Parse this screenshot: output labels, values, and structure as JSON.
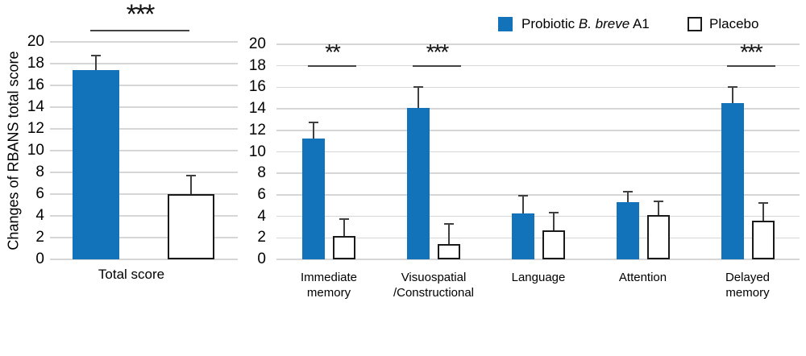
{
  "legend": {
    "items": [
      {
        "name": "probiotic",
        "prefix": "Probiotic ",
        "italic": "B. breve",
        "suffix": " A1",
        "swatch_color": "#1272ba"
      },
      {
        "name": "placebo",
        "label": "Placebo",
        "swatch_color": "#ffffff"
      }
    ]
  },
  "colors": {
    "probiotic": "#1272ba",
    "placebo_fill": "#ffffff",
    "bar_border": "#1a1a1a",
    "gridline": "#d6d6d6",
    "error_bar": "#404040",
    "sig_line": "#444444"
  },
  "chart_data": [
    {
      "type": "bar",
      "title": "",
      "ylabel": "Changes of RBANS total score",
      "xlabel": "",
      "ylim": [
        0,
        20
      ],
      "ytick_step": 2,
      "grid": true,
      "legend_position": "top-right",
      "categories": [
        "Total score"
      ],
      "series": [
        {
          "name": "Probiotic B. breve A1",
          "values": [
            17.4
          ],
          "errors_plus": [
            1.4
          ]
        },
        {
          "name": "Placebo",
          "values": [
            6.0
          ],
          "errors_plus": [
            1.8
          ]
        }
      ],
      "significance": [
        {
          "category_index": 0,
          "label": "***"
        }
      ]
    },
    {
      "type": "bar",
      "title": "",
      "ylabel": "",
      "xlabel": "",
      "ylim": [
        0,
        20
      ],
      "ytick_step": 2,
      "grid": true,
      "categories": [
        "Immediate\nmemory",
        "Visuospatial\n/Constructional",
        "Language",
        "Attention",
        "Delayed\nmemory"
      ],
      "series": [
        {
          "name": "Probiotic B. breve A1",
          "values": [
            11.2,
            14.1,
            4.3,
            5.3,
            14.5
          ],
          "errors_plus": [
            1.6,
            2.0,
            1.7,
            1.1,
            1.6
          ]
        },
        {
          "name": "Placebo",
          "values": [
            2.2,
            1.4,
            2.7,
            4.1,
            3.6
          ],
          "errors_plus": [
            1.6,
            2.0,
            1.7,
            1.4,
            1.7
          ]
        }
      ],
      "significance": [
        {
          "category_index": 0,
          "label": "**"
        },
        {
          "category_index": 1,
          "label": "***"
        },
        {
          "category_index": 4,
          "label": "***"
        }
      ]
    }
  ]
}
